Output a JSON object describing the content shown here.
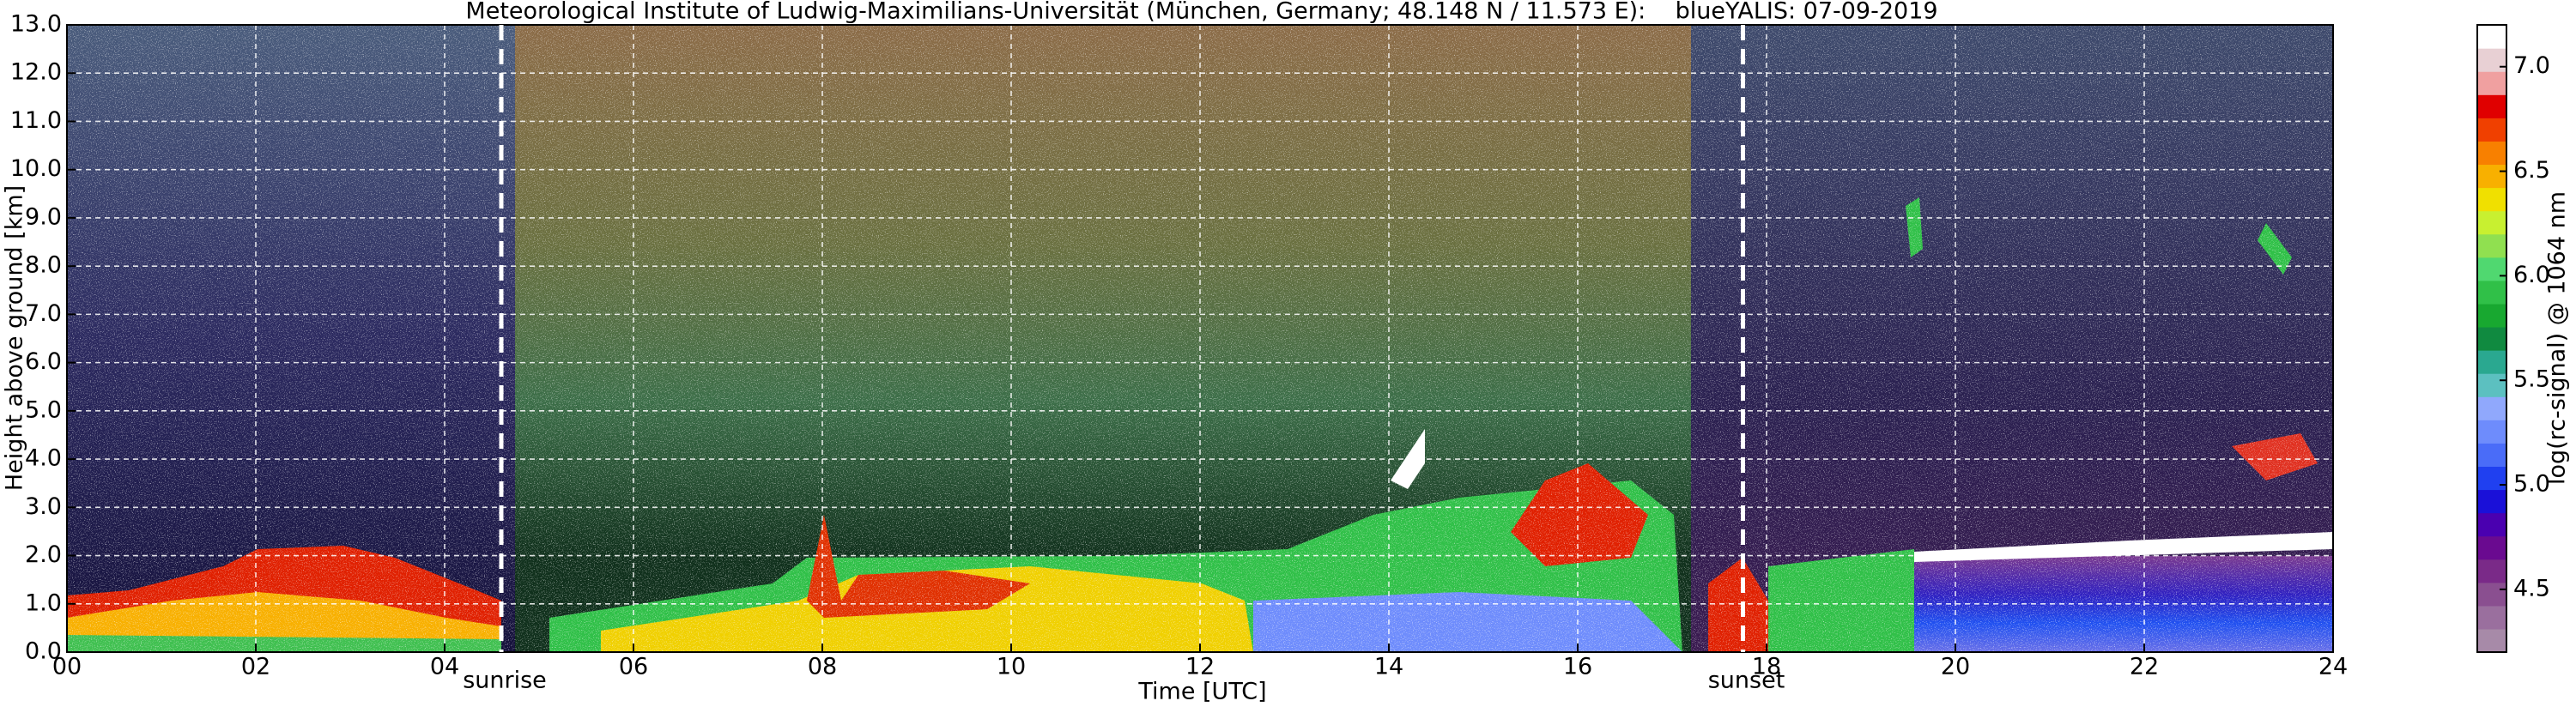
{
  "chart_data": {
    "type": "heatmap",
    "title": "Meteorological Institute of Ludwig-Maximilians-Universität (München, Germany; 48.148 N / 11.573 E):    blueYALIS: 07-09-2019",
    "x_label": "Time [UTC]",
    "y_label": "Height above ground [km]",
    "xlim": [
      0,
      24
    ],
    "xticks": [
      {
        "value": 0,
        "label": "00"
      },
      {
        "value": 2,
        "label": "02"
      },
      {
        "value": 4,
        "label": "04"
      },
      {
        "value": 6,
        "label": "06"
      },
      {
        "value": 8,
        "label": "08"
      },
      10,
      12,
      14,
      16,
      18,
      20,
      22,
      24
    ],
    "ylim": [
      0,
      13
    ],
    "yticks": [
      {
        "value": 0,
        "label": "0.0"
      },
      {
        "value": 1,
        "label": "1.0"
      },
      {
        "value": 2,
        "label": "2.0"
      },
      {
        "value": 3,
        "label": "3.0"
      },
      {
        "value": 4,
        "label": "4.0"
      },
      {
        "value": 5,
        "label": "5.0"
      },
      {
        "value": 6,
        "label": "6.0"
      },
      {
        "value": 7,
        "label": "7.0"
      },
      {
        "value": 8,
        "label": "8.0"
      },
      {
        "value": 9,
        "label": "9.0"
      },
      {
        "value": 10,
        "label": "10.0"
      },
      {
        "value": 11,
        "label": "11.0"
      },
      {
        "value": 12,
        "label": "12.0"
      },
      {
        "value": 13,
        "label": "13.0"
      }
    ],
    "grid": true,
    "annotations": [
      {
        "text": "sunrise",
        "x": 4.6
      },
      {
        "text": "sunset",
        "x": 17.75
      }
    ],
    "colorbar": {
      "label": "log(rc-signal) @ 1064 nm",
      "lim": [
        4.2,
        7.2
      ],
      "ticks": [
        4.5,
        {
          "value": 5,
          "label": "5.0"
        },
        5.5,
        {
          "value": 6,
          "label": "6.0"
        },
        6.5,
        {
          "value": 7,
          "label": "7.0"
        }
      ],
      "colors": [
        "#a78aa8",
        "#9a6f9e",
        "#8a4f90",
        "#7a2a88",
        "#6a0a90",
        "#4a00b0",
        "#1a10d8",
        "#2040f0",
        "#4a6cf8",
        "#6e8cfc",
        "#90a8fc",
        "#5cc0c0",
        "#2aa890",
        "#108a40",
        "#18a830",
        "#30c048",
        "#50d870",
        "#90e050",
        "#c8f030",
        "#f0e000",
        "#f8b000",
        "#f88000",
        "#f04000",
        "#e00000",
        "#f0a0a0",
        "#e8d0d4",
        "#ffffff"
      ]
    }
  }
}
